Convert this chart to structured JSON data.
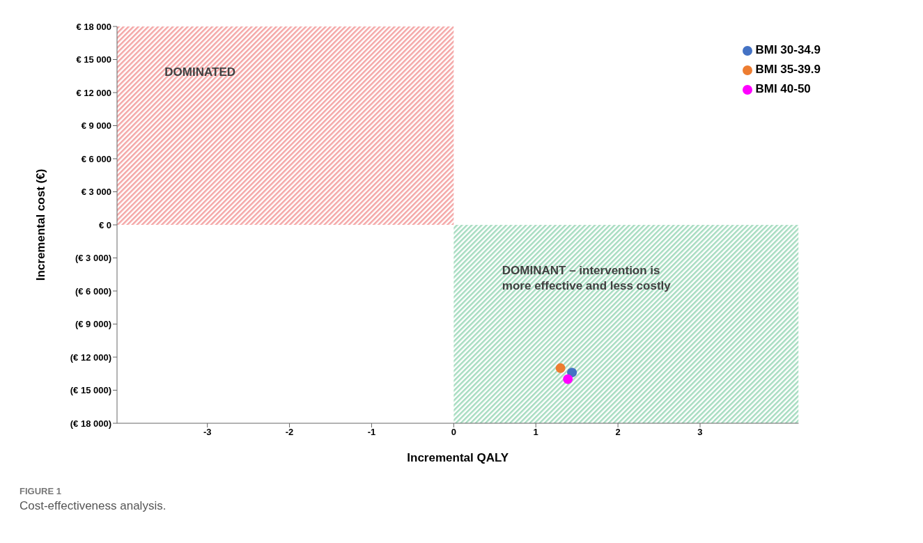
{
  "chart_data": {
    "type": "scatter",
    "xlabel": "Incremental QALY",
    "ylabel": "Incremental cost (€)",
    "xlim": [
      -4.1,
      4.2
    ],
    "xticks": [
      -3,
      -2,
      -1,
      0,
      1,
      2,
      3
    ],
    "ylim": [
      -18000,
      18000
    ],
    "yticks": [
      {
        "value": -18000,
        "label": "(€ 18 000)"
      },
      {
        "value": -15000,
        "label": "(€ 15 000)"
      },
      {
        "value": -12000,
        "label": "(€ 12 000)"
      },
      {
        "value": -9000,
        "label": "(€ 9 000)"
      },
      {
        "value": -6000,
        "label": "(€ 6 000)"
      },
      {
        "value": -3000,
        "label": "(€ 3 000)"
      },
      {
        "value": 0,
        "label": "€ 0"
      },
      {
        "value": 3000,
        "label": "€ 3 000"
      },
      {
        "value": 6000,
        "label": "€ 6 000"
      },
      {
        "value": 9000,
        "label": "€ 9 000"
      },
      {
        "value": 12000,
        "label": "€ 12 000"
      },
      {
        "value": 15000,
        "label": "€ 15 000"
      },
      {
        "value": 18000,
        "label": "€ 18 000"
      }
    ],
    "series": [
      {
        "name": "BMI 30-34.9",
        "color": "#4472c4",
        "x": [
          1.44
        ],
        "values": [
          -13400
        ]
      },
      {
        "name": "BMI 35-39.9",
        "color": "#ed7d31",
        "x": [
          1.3
        ],
        "values": [
          -13000
        ]
      },
      {
        "name": "BMI 40-50",
        "color": "#ff00ff",
        "x": [
          1.39
        ],
        "values": [
          -14000
        ]
      }
    ],
    "bands": [
      {
        "axis": "x",
        "from": -4.1,
        "to": 0,
        "label": "DOMINATED",
        "color": "#f4a6a6"
      },
      {
        "axis": "x",
        "from": 0,
        "to": 4.2,
        "label": "DOMINANT – intervention is\nmore effective and less costly",
        "color": "#a6dcc0"
      }
    ],
    "marker": "circle",
    "legend": "top right",
    "annotations": [
      "FIGURE 1",
      "Cost-effectiveness analysis."
    ]
  }
}
